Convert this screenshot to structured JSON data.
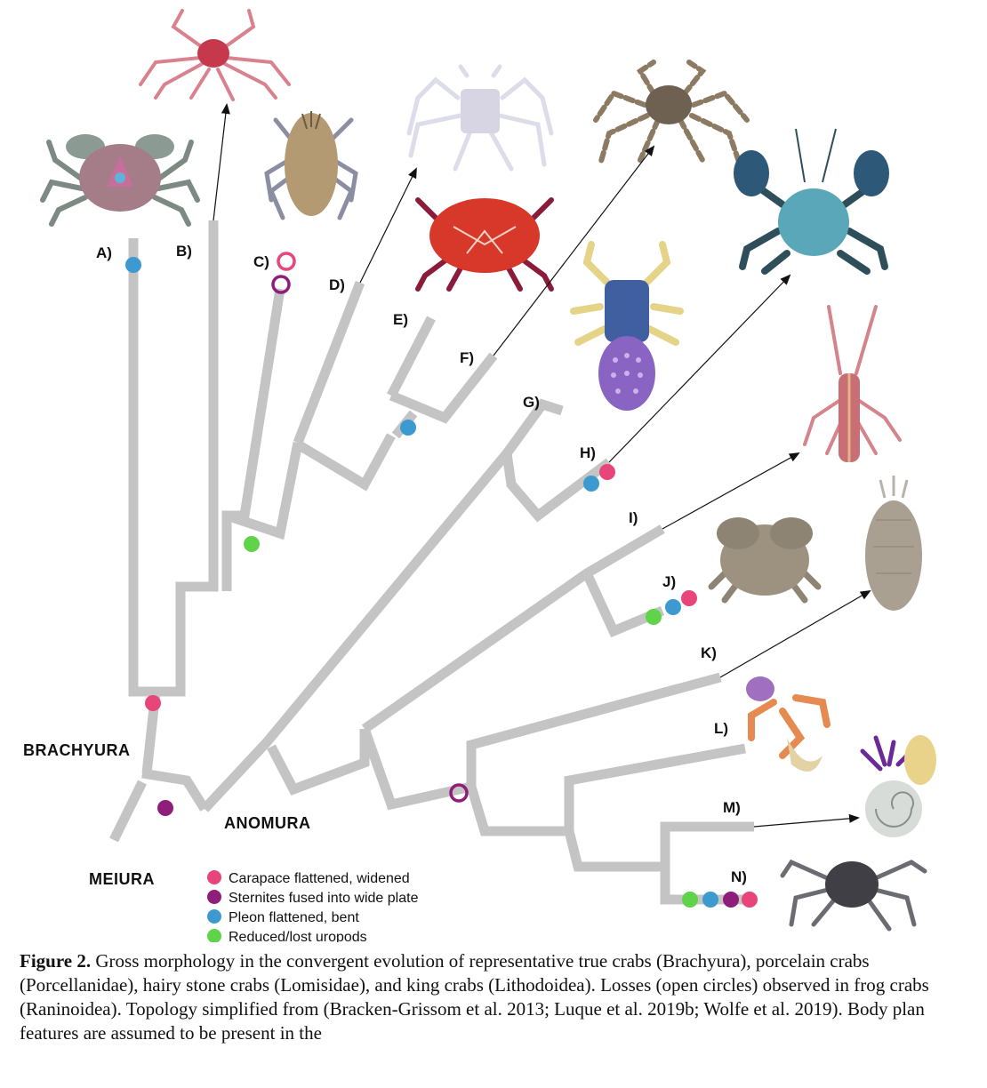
{
  "clade_labels": [
    "A)",
    "B)",
    "C)",
    "D)",
    "E)",
    "F)",
    "G)",
    "H)",
    "I)",
    "J)",
    "K)",
    "L)",
    "M)",
    "N)"
  ],
  "groups": {
    "brachyura": "BRACHYURA",
    "anomura": "ANOMURA",
    "meiura": "MEIURA"
  },
  "legend": [
    {
      "label": "Carapace flattened, widened",
      "color": "#e8457a"
    },
    {
      "label": "Sternites fused into wide plate",
      "color": "#8e1e7a"
    },
    {
      "label": "Pleon flattened, bent",
      "color": "#3c9ad0"
    },
    {
      "label": "Reduced/lost uropods",
      "color": "#5fd34a"
    }
  ],
  "branch_color": "#c4c4c4",
  "caption": {
    "figure_label": "Figure 2.",
    "text": "Gross morphology in the convergent evolution of representative true crabs (Brachyura), porcelain crabs (Porcellanidae), hairy stone crabs (Lomisidae), and king crabs (Lithodoidea). Losses (open circles) observed in frog crabs (Raninoidea). Topology simplified from (Bracken-Grissom et al. 2013; Luque et al. 2019b; Wolfe et al. 2019). Body plan features are assumed to be present in the"
  }
}
